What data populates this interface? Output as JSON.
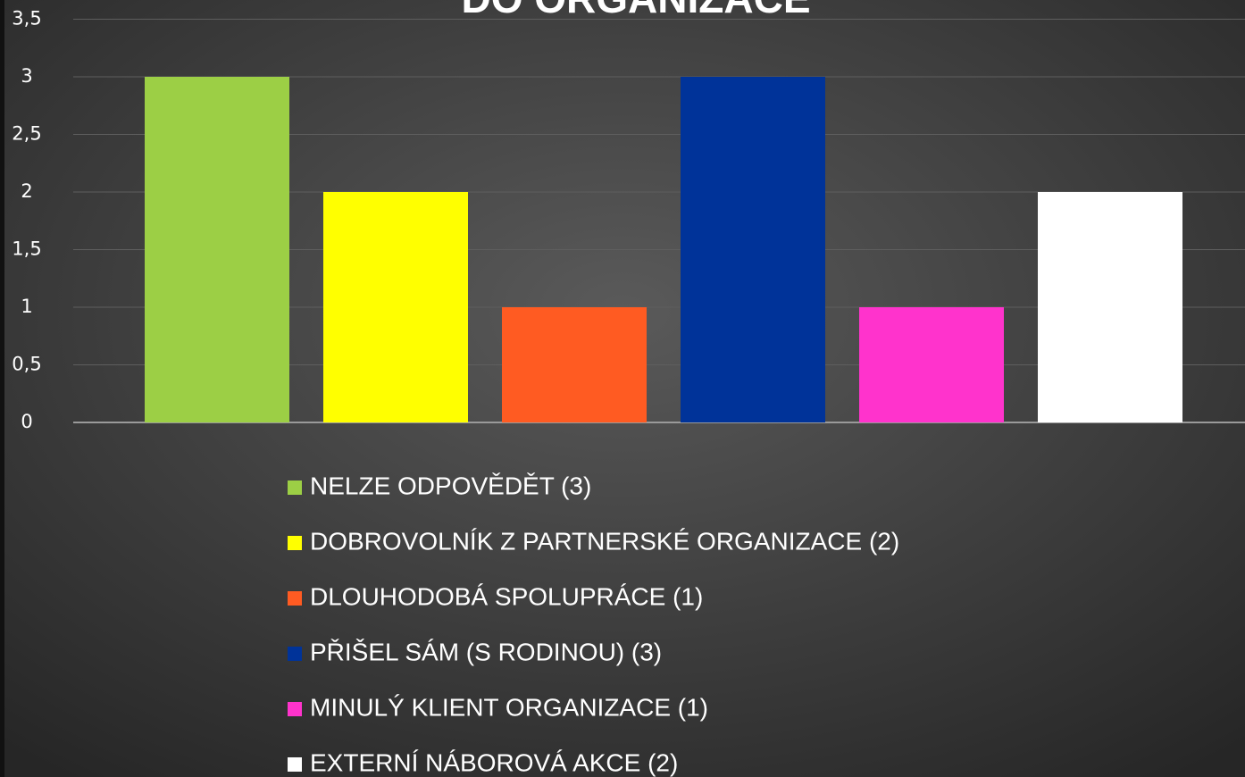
{
  "chart_data": {
    "type": "bar",
    "title": "DO ORGANIZACE",
    "categories": [
      null
    ],
    "series": [
      {
        "name": "NELZE ODPOVĚDĚT (3)",
        "color": "#9ccf45",
        "values": [
          3
        ]
      },
      {
        "name": "DOBROVOLNÍK Z PARTNERSKÉ ORGANIZACE (2)",
        "color": "#ffff00",
        "values": [
          2
        ]
      },
      {
        "name": "DLOUHODOBÁ SPOLUPRÁCE (1)",
        "color": "#ff5b22",
        "values": [
          1
        ]
      },
      {
        "name": "PŘIŠEL SÁM (S RODINOU) (3)",
        "color": "#003399",
        "values": [
          3
        ]
      },
      {
        "name": "MINULÝ KLIENT ORGANIZACE (1)",
        "color": "#ff33cc",
        "values": [
          1
        ]
      },
      {
        "name": "EXTERNÍ NÁBOROVÁ AKCE (2)",
        "color": "#ffffff",
        "values": [
          2
        ]
      }
    ],
    "ylim": [
      0,
      3.5
    ],
    "yticks": [
      0,
      {
        "value": 0.5,
        "label": "0,5"
      },
      1,
      {
        "value": 1.5,
        "label": "1,5"
      },
      2,
      {
        "value": 2.5,
        "label": "2,5"
      },
      3,
      {
        "value": 3.5,
        "label": "3,5"
      }
    ],
    "grid": true,
    "legend": "bottom"
  }
}
